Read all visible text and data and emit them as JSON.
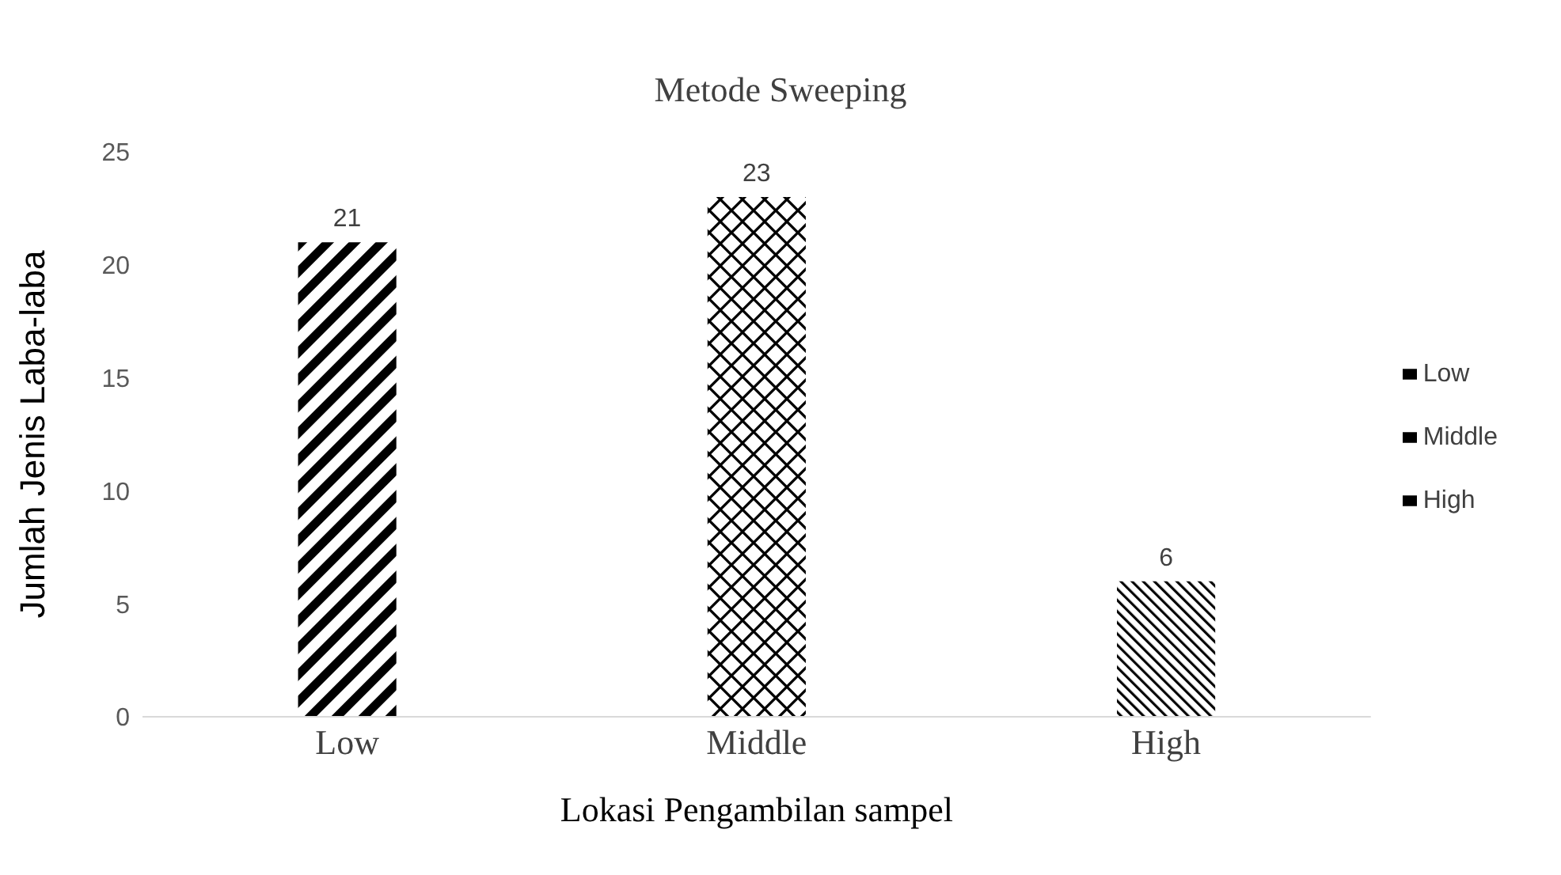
{
  "chart_data": {
    "type": "bar",
    "title": "Metode Sweeping",
    "xlabel": "Lokasi Pengambilan sampel",
    "ylabel": "Jumlah Jenis Laba-laba",
    "categories": [
      "Low",
      "Middle",
      "High"
    ],
    "series": [
      {
        "name": "Low",
        "color": "#000000",
        "values": [
          21,
          null,
          null
        ]
      },
      {
        "name": "Middle",
        "color": "#000000",
        "values": [
          null,
          23,
          null
        ]
      },
      {
        "name": "High",
        "color": "#000000",
        "values": [
          null,
          null,
          6
        ]
      }
    ],
    "stacked": true,
    "ylim": [
      0,
      25
    ],
    "yticks": [
      0,
      5,
      10,
      15,
      20,
      25
    ],
    "grid": false,
    "legend": "right",
    "data_labels": true
  }
}
